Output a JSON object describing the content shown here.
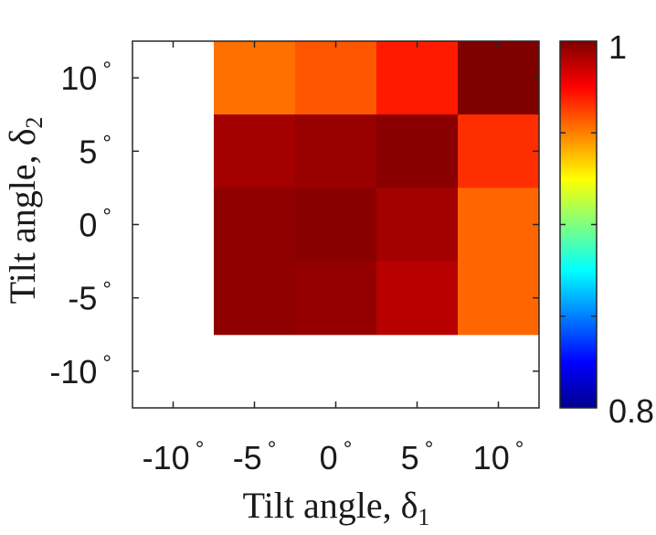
{
  "chart_data": {
    "type": "heatmap",
    "x_categories": [
      "-10",
      "-5",
      "0",
      "5",
      "10"
    ],
    "y_categories": [
      "-10",
      "-5",
      "0",
      "5",
      "10"
    ],
    "tick_suffix": "°",
    "xlabel": {
      "main": "Tilt angle, δ",
      "sub": "1"
    },
    "ylabel": {
      "main": "Tilt angle, δ",
      "sub": "2"
    },
    "missing_note": "cells at δ1 = -10° or δ2 = -10° are empty",
    "cells": [
      {
        "x": "-5",
        "y": "10",
        "value": 0.953
      },
      {
        "x": "0",
        "y": "10",
        "value": 0.958
      },
      {
        "x": "5",
        "y": "10",
        "value": 0.97
      },
      {
        "x": "10",
        "y": "10",
        "value": 1.0
      },
      {
        "x": "-5",
        "y": "5",
        "value": 0.993
      },
      {
        "x": "0",
        "y": "5",
        "value": 0.995
      },
      {
        "x": "5",
        "y": "5",
        "value": 0.998
      },
      {
        "x": "10",
        "y": "5",
        "value": 0.966
      },
      {
        "x": "-5",
        "y": "0",
        "value": 0.997
      },
      {
        "x": "0",
        "y": "0",
        "value": 0.998
      },
      {
        "x": "5",
        "y": "0",
        "value": 0.993
      },
      {
        "x": "10",
        "y": "0",
        "value": 0.955
      },
      {
        "x": "-5",
        "y": "-5",
        "value": 0.997
      },
      {
        "x": "0",
        "y": "-5",
        "value": 0.996
      },
      {
        "x": "5",
        "y": "-5",
        "value": 0.989
      },
      {
        "x": "10",
        "y": "-5",
        "value": 0.955
      }
    ],
    "colorbar": {
      "min": 0.8,
      "max": 1,
      "labels": [
        "1",
        "0.8"
      ],
      "colormap": "jet"
    },
    "grid": false
  }
}
